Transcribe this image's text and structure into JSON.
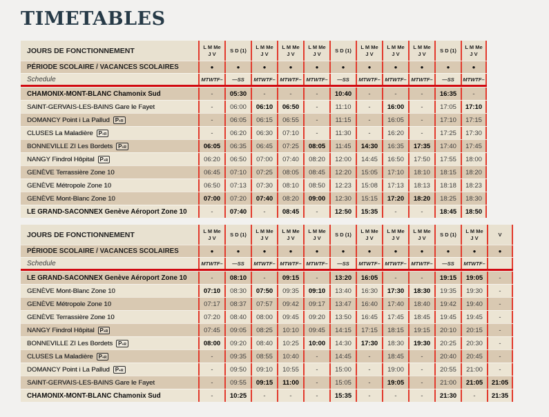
{
  "page": {
    "title": "TIMETABLES"
  },
  "colors": {
    "grid_red": "#e2392c",
    "divider_red": "#d10910",
    "row_dark": "#d9c9b2",
    "row_light": "#ece5d4",
    "title_color": "#263a47"
  },
  "labels": {
    "days_header": "JOURS DE FONCTIONNEMENT",
    "period_header": "PÉRIODE SCOLAIRE / VACANCES SCOLAIRES",
    "schedule_label": "Schedule",
    "bullet": "●",
    "pr_icon_main": "P",
    "pr_icon_sub": "+R"
  },
  "tables": [
    {
      "name": "outbound-chamonix-to-geneva-airport",
      "columns": [
        {
          "days": "L M Me\nJ V",
          "schedule": "MTWTF–"
        },
        {
          "days": "S D (1)",
          "schedule": "—SS"
        },
        {
          "days": "L M Me\nJ V",
          "schedule": "MTWTF–"
        },
        {
          "days": "L M Me\nJ V",
          "schedule": "MTWTF–"
        },
        {
          "days": "L M Me\nJ V",
          "schedule": "MTWTF–"
        },
        {
          "days": "S D (1)",
          "schedule": "—SS"
        },
        {
          "days": "L M Me\nJ V",
          "schedule": "MTWTF–"
        },
        {
          "days": "L M Me\nJ V",
          "schedule": "MTWTF–"
        },
        {
          "days": "L M Me\nJ V",
          "schedule": "MTWTF–"
        },
        {
          "days": "S D (1)",
          "schedule": "—SS"
        },
        {
          "days": "L M Me\nJ V",
          "schedule": "MTWTF–"
        }
      ],
      "rows": [
        {
          "station": "CHAMONIX-MONT-BLANC Chamonix Sud",
          "terminal": true,
          "pr": false,
          "times": [
            "-",
            "05:30",
            "-",
            "-",
            "-",
            "10:40",
            "-",
            "-",
            "-",
            "16:35",
            "-"
          ],
          "bold": [
            1,
            5,
            9
          ]
        },
        {
          "station": "SAINT-GERVAIS-LES-BAINS Gare le Fayet",
          "terminal": false,
          "pr": false,
          "times": [
            "-",
            "06:00",
            "06:10",
            "06:50",
            "-",
            "11:10",
            "-",
            "16:00",
            "-",
            "17:05",
            "17:10"
          ],
          "bold": [
            2,
            3,
            7,
            10
          ]
        },
        {
          "station": "DOMANCY Point i La Pallud",
          "terminal": false,
          "pr": true,
          "times": [
            "-",
            "06:05",
            "06:15",
            "06:55",
            "-",
            "11:15",
            "-",
            "16:05",
            "-",
            "17:10",
            "17:15"
          ],
          "bold": []
        },
        {
          "station": "CLUSES La Maladière",
          "terminal": false,
          "pr": true,
          "times": [
            "-",
            "06:20",
            "06:30",
            "07:10",
            "-",
            "11:30",
            "-",
            "16:20",
            "-",
            "17:25",
            "17:30"
          ],
          "bold": []
        },
        {
          "station": "BONNEVILLE ZI Les Bordets",
          "terminal": false,
          "pr": true,
          "times": [
            "06:05",
            "06:35",
            "06:45",
            "07:25",
            "08:05",
            "11:45",
            "14:30",
            "16:35",
            "17:35",
            "17:40",
            "17:45"
          ],
          "bold": [
            0,
            4,
            6,
            8
          ]
        },
        {
          "station": "NANGY Findrol Hôpital",
          "terminal": false,
          "pr": true,
          "times": [
            "06:20",
            "06:50",
            "07:00",
            "07:40",
            "08:20",
            "12:00",
            "14:45",
            "16:50",
            "17:50",
            "17:55",
            "18:00"
          ],
          "bold": []
        },
        {
          "station": "GENÈVE Terrassière Zone 10",
          "terminal": false,
          "pr": false,
          "times": [
            "06:45",
            "07:10",
            "07:25",
            "08:05",
            "08:45",
            "12:20",
            "15:05",
            "17:10",
            "18:10",
            "18:15",
            "18:20"
          ],
          "bold": []
        },
        {
          "station": "GENÈVE Métropole Zone 10",
          "terminal": false,
          "pr": false,
          "times": [
            "06:50",
            "07:13",
            "07:30",
            "08:10",
            "08:50",
            "12:23",
            "15:08",
            "17:13",
            "18:13",
            "18:18",
            "18:23"
          ],
          "bold": []
        },
        {
          "station": "GENÈVE Mont-Blanc Zone 10",
          "terminal": false,
          "pr": false,
          "times": [
            "07:00",
            "07:20",
            "07:40",
            "08:20",
            "09:00",
            "12:30",
            "15:15",
            "17:20",
            "18:20",
            "18:25",
            "18:30"
          ],
          "bold": [
            0,
            2,
            4,
            7,
            8
          ]
        },
        {
          "station": "LE GRAND-SACONNEX Genève Aéroport Zone 10",
          "terminal": true,
          "pr": false,
          "times": [
            "-",
            "07:40",
            "-",
            "08:45",
            "-",
            "12:50",
            "15:35",
            "-",
            "-",
            "18:45",
            "18:50"
          ],
          "bold": [
            1,
            3,
            5,
            6,
            9,
            10
          ]
        }
      ]
    },
    {
      "name": "return-geneva-airport-to-chamonix",
      "columns": [
        {
          "days": "L M Me\nJ V",
          "schedule": "MTWTF–"
        },
        {
          "days": "S D (1)",
          "schedule": "—SS"
        },
        {
          "days": "L M Me\nJ V",
          "schedule": "MTWTF–"
        },
        {
          "days": "L M Me\nJ V",
          "schedule": "MTWTF–"
        },
        {
          "days": "L M Me\nJ V",
          "schedule": "MTWTF–"
        },
        {
          "days": "S D (1)",
          "schedule": "—SS"
        },
        {
          "days": "L M Me\nJ V",
          "schedule": "MTWTF–"
        },
        {
          "days": "L M Me\nJ V",
          "schedule": "MTWTF–"
        },
        {
          "days": "L M Me\nJ V",
          "schedule": "MTWTF–"
        },
        {
          "days": "S D (1)",
          "schedule": "—SS"
        },
        {
          "days": "L M Me\nJ V",
          "schedule": "MTWTF–"
        },
        {
          "days": "V",
          "schedule": ""
        }
      ],
      "rows": [
        {
          "station": "LE GRAND-SACONNEX Genève Aéroport Zone 10",
          "terminal": true,
          "pr": false,
          "times": [
            "-",
            "08:10",
            "-",
            "09:15",
            "-",
            "13:20",
            "16:05",
            "-",
            "-",
            "19:15",
            "19:05",
            "-"
          ],
          "bold": [
            1,
            3,
            5,
            6,
            9,
            10
          ]
        },
        {
          "station": "GENÈVE Mont-Blanc Zone 10",
          "terminal": false,
          "pr": false,
          "times": [
            "07:10",
            "08:30",
            "07:50",
            "09:35",
            "09:10",
            "13:40",
            "16:30",
            "17:30",
            "18:30",
            "19:35",
            "19:30",
            "-"
          ],
          "bold": [
            0,
            2,
            4,
            7,
            8
          ]
        },
        {
          "station": "GENÈVE Métropole Zone 10",
          "terminal": false,
          "pr": false,
          "times": [
            "07:17",
            "08:37",
            "07:57",
            "09:42",
            "09:17",
            "13:47",
            "16:40",
            "17:40",
            "18:40",
            "19:42",
            "19:40",
            "-"
          ],
          "bold": []
        },
        {
          "station": "GENÈVE Terrassière Zone 10",
          "terminal": false,
          "pr": false,
          "times": [
            "07:20",
            "08:40",
            "08:00",
            "09:45",
            "09:20",
            "13:50",
            "16:45",
            "17:45",
            "18:45",
            "19:45",
            "19:45",
            "-"
          ],
          "bold": []
        },
        {
          "station": "NANGY Findrol Hôpital",
          "terminal": false,
          "pr": true,
          "times": [
            "07:45",
            "09:05",
            "08:25",
            "10:10",
            "09:45",
            "14:15",
            "17:15",
            "18:15",
            "19:15",
            "20:10",
            "20:15",
            "-"
          ],
          "bold": []
        },
        {
          "station": "BONNEVILLE ZI Les Bordets",
          "terminal": false,
          "pr": true,
          "times": [
            "08:00",
            "09:20",
            "08:40",
            "10:25",
            "10:00",
            "14:30",
            "17:30",
            "18:30",
            "19:30",
            "20:25",
            "20:30",
            "-"
          ],
          "bold": [
            0,
            4,
            6,
            8
          ]
        },
        {
          "station": "CLUSES La Maladière",
          "terminal": false,
          "pr": true,
          "times": [
            "-",
            "09:35",
            "08:55",
            "10:40",
            "-",
            "14:45",
            "-",
            "18:45",
            "-",
            "20:40",
            "20:45",
            "-"
          ],
          "bold": []
        },
        {
          "station": "DOMANCY Point i La Pallud",
          "terminal": false,
          "pr": true,
          "times": [
            "-",
            "09:50",
            "09:10",
            "10:55",
            "-",
            "15:00",
            "-",
            "19:00",
            "-",
            "20:55",
            "21:00",
            "-"
          ],
          "bold": []
        },
        {
          "station": "SAINT-GERVAIS-LES-BAINS Gare le Fayet",
          "terminal": false,
          "pr": false,
          "times": [
            "-",
            "09:55",
            "09:15",
            "11:00",
            "-",
            "15:05",
            "-",
            "19:05",
            "-",
            "21:00",
            "21:05",
            "21:05"
          ],
          "bold": [
            2,
            3,
            7,
            10,
            11
          ]
        },
        {
          "station": "CHAMONIX-MONT-BLANC Chamonix Sud",
          "terminal": true,
          "pr": false,
          "times": [
            "-",
            "10:25",
            "-",
            "-",
            "-",
            "15:35",
            "-",
            "-",
            "-",
            "21:30",
            "-",
            "21:35"
          ],
          "bold": [
            1,
            5,
            9,
            11
          ]
        }
      ]
    }
  ]
}
